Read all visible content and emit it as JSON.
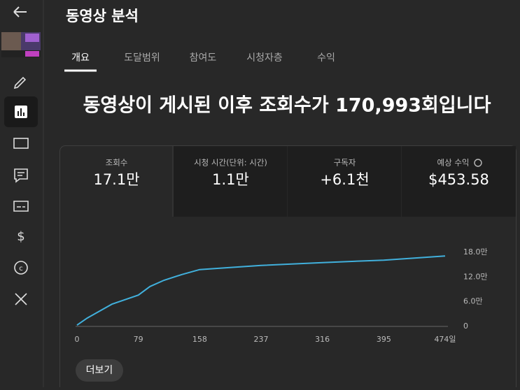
{
  "header": {
    "title": "동영상 분석"
  },
  "tabs": [
    "개요",
    "도달범위",
    "참여도",
    "시청자층",
    "수익"
  ],
  "headline": "동영상이 게시된 이후 조회수가 170,993회입니다",
  "metrics": [
    {
      "label": "조회수",
      "value": "17.1만"
    },
    {
      "label": "시청 시간(단위: 시간)",
      "value": "1.1만"
    },
    {
      "label": "구독자",
      "value": "+6.1천"
    },
    {
      "label": "예상 수익",
      "value": "$453.58"
    }
  ],
  "chart_data": {
    "type": "line",
    "series": [
      {
        "name": "조회수",
        "color": "#41b0dc",
        "x": [
          0,
          13,
          45,
          79,
          94,
          112,
          135,
          158,
          197,
          237,
          316,
          395,
          474
        ],
        "values": [
          0.3,
          2.0,
          5.4,
          7.6,
          9.7,
          11.2,
          12.6,
          13.8,
          14.3,
          14.8,
          15.5,
          16.1,
          17.1
        ]
      }
    ],
    "xlim": [
      0,
      474
    ],
    "xticks": [
      0,
      79,
      158,
      237,
      316,
      395,
      {
        "value": 474,
        "label": "474일"
      }
    ],
    "ylim": [
      0,
      18
    ],
    "yticks": [
      0,
      {
        "value": 6,
        "label": "6.0만"
      },
      {
        "value": 12,
        "label": "12.0만"
      },
      {
        "value": 18,
        "label": "18.0만"
      }
    ],
    "grid": false
  },
  "more_button": "더보기"
}
